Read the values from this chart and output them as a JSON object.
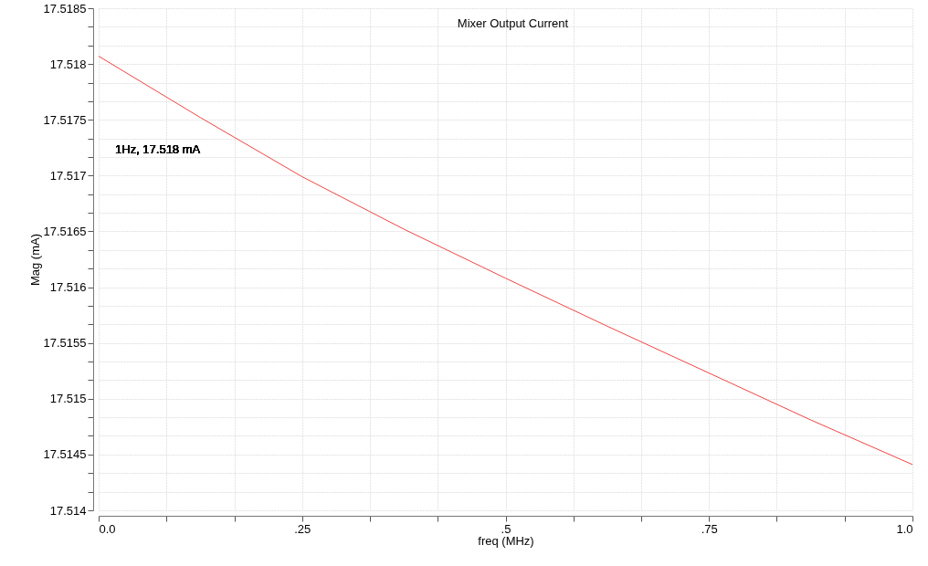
{
  "chart_data": {
    "type": "line",
    "title": "Mixer Output Current",
    "xlabel": "freq (MHz)",
    "ylabel": "Mag (mA)",
    "x": [
      0,
      0.125,
      0.25,
      0.375,
      0.5,
      0.625,
      0.75,
      0.875,
      1
    ],
    "series": [
      {
        "color": "#f04545",
        "values": [
          17.51807,
          17.51752,
          17.51699,
          17.51652,
          17.51608,
          17.51565,
          17.51523,
          17.51481,
          17.51441
        ]
      }
    ],
    "xlim": [
      0,
      1
    ],
    "ylim": [
      17.514,
      17.5185
    ],
    "xticks": [
      {
        "value": 0,
        "label": "0.0"
      },
      {
        "value": 0.083333,
        "label": null
      },
      {
        "value": 0.166667,
        "label": null
      },
      {
        "value": 0.25,
        "label": ".25"
      },
      {
        "value": 0.333333,
        "label": null
      },
      {
        "value": 0.416667,
        "label": null
      },
      {
        "value": 0.5,
        "label": ".5"
      },
      {
        "value": 0.583333,
        "label": null
      },
      {
        "value": 0.666667,
        "label": null
      },
      {
        "value": 0.75,
        "label": ".75"
      },
      {
        "value": 0.833333,
        "label": null
      },
      {
        "value": 0.916667,
        "label": null
      },
      {
        "value": 1,
        "label": "1.0"
      }
    ],
    "yticks": [
      17.514,
      {
        "value": 17.514167,
        "label": null
      },
      {
        "value": 17.514333,
        "label": null
      },
      17.5145,
      {
        "value": 17.514667,
        "label": null
      },
      {
        "value": 17.514833,
        "label": null
      },
      17.515,
      {
        "value": 17.515167,
        "label": null
      },
      {
        "value": 17.515333,
        "label": null
      },
      17.5155,
      {
        "value": 17.515667,
        "label": null
      },
      {
        "value": 17.515833,
        "label": null
      },
      17.516,
      {
        "value": 17.516167,
        "label": null
      },
      {
        "value": 17.516333,
        "label": null
      },
      17.5165,
      {
        "value": 17.516667,
        "label": null
      },
      {
        "value": 17.516833,
        "label": null
      },
      17.517,
      {
        "value": 17.517167,
        "label": null
      },
      {
        "value": 17.517333,
        "label": null
      },
      17.5175,
      {
        "value": 17.517667,
        "label": null
      },
      {
        "value": 17.517833,
        "label": null
      },
      17.518,
      {
        "value": 17.518167,
        "label": null
      },
      {
        "value": 17.518333,
        "label": null
      },
      17.5185
    ],
    "grid": true,
    "marker": "none",
    "line_style": "solid",
    "annotations": [
      "1Hz, 17.518 mA"
    ]
  }
}
